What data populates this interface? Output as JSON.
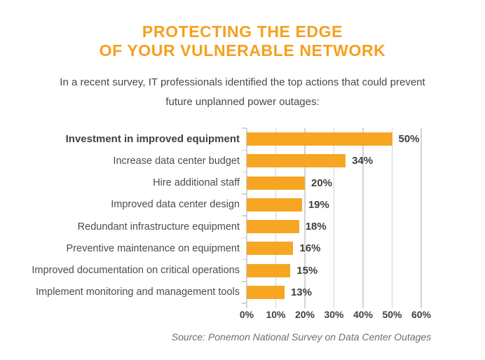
{
  "title": {
    "line1": "PROTECTING THE EDGE",
    "line2": "OF YOUR VULNERABLE NETWORK"
  },
  "subtitle": {
    "line1": "In a recent survey, IT professionals identified the top actions that could prevent",
    "line2": "future unplanned power outages:"
  },
  "source": "Source: Ponemon National Survey on Data Center Outages",
  "colors": {
    "title_orange": "#F5A01E",
    "bar_orange": "#F6A623",
    "text_dark": "#414042",
    "grid_gray": "#D2D3D5",
    "source_gray": "#6D6E71"
  },
  "chart_data": {
    "type": "bar",
    "orientation": "horizontal",
    "title": "",
    "xlabel": "",
    "ylabel": "",
    "categories": [
      "Investment in improved equipment",
      "Increase data center budget",
      "Hire additional staff",
      "Improved data center design",
      "Redundant infrastructure equipment",
      "Preventive maintenance on equipment",
      "Improved documentation on critical operations",
      "Implement monitoring and management tools"
    ],
    "values": [
      50,
      34,
      20,
      19,
      18,
      16,
      15,
      13
    ],
    "value_labels": [
      "50%",
      "34%",
      "20%",
      "19%",
      "18%",
      "16%",
      "15%",
      "13%"
    ],
    "x_ticks": [
      "0%",
      "10%",
      "20%",
      "30%",
      "40%",
      "50%",
      "60%"
    ],
    "xlim": [
      0,
      60
    ],
    "grid": true,
    "legend": false,
    "emphasized_category_index": 0
  }
}
